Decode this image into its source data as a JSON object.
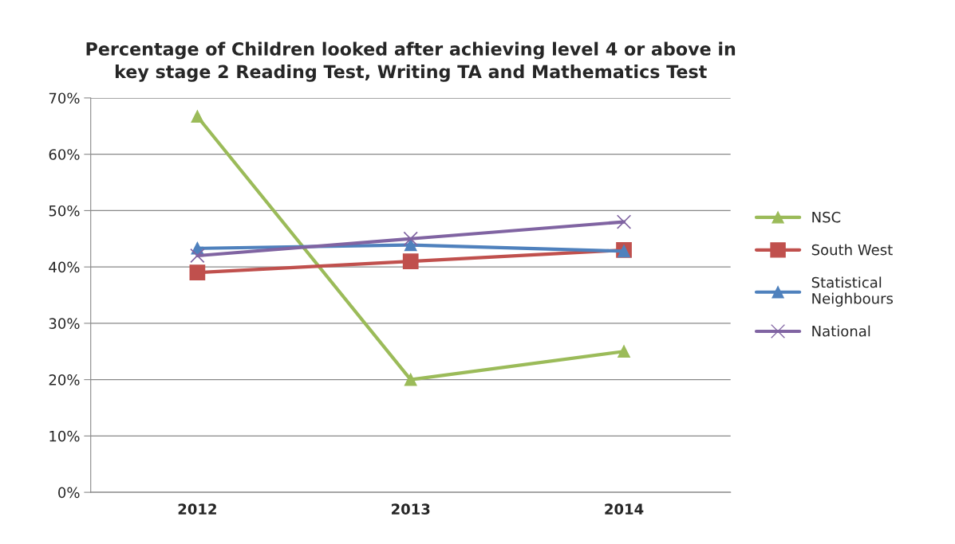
{
  "chart_data": {
    "type": "line",
    "title": "Percentage of Children looked after achieving level 4 or above in\nkey stage 2 Reading Test, Writing TA and Mathematics Test",
    "categories": [
      "2012",
      "2013",
      "2014"
    ],
    "series": [
      {
        "name": "NSC",
        "color": "#9bbb59",
        "marker": "triangle",
        "values": [
          66.7,
          20,
          25
        ]
      },
      {
        "name": "South West",
        "color": "#c0504d",
        "marker": "square",
        "values": [
          39,
          41,
          43
        ]
      },
      {
        "name": "Statistical\nNeighbours",
        "color": "#4f81bd",
        "marker": "triangle",
        "values": [
          43.3,
          43.9,
          42.8
        ]
      },
      {
        "name": "National",
        "color": "#8064a2",
        "marker": "cross",
        "values": [
          42,
          45,
          48
        ]
      }
    ],
    "ylim": [
      0,
      70
    ],
    "yticks": [
      {
        "value": 0,
        "label": "0%"
      },
      {
        "value": 10,
        "label": "10%"
      },
      {
        "value": 20,
        "label": "20%"
      },
      {
        "value": 30,
        "label": "30%"
      },
      {
        "value": 40,
        "label": "40%"
      },
      {
        "value": 50,
        "label": "50%"
      },
      {
        "value": 60,
        "label": "60%"
      },
      {
        "value": 70,
        "label": "70%"
      }
    ],
    "grid": "y",
    "legend": "right"
  }
}
